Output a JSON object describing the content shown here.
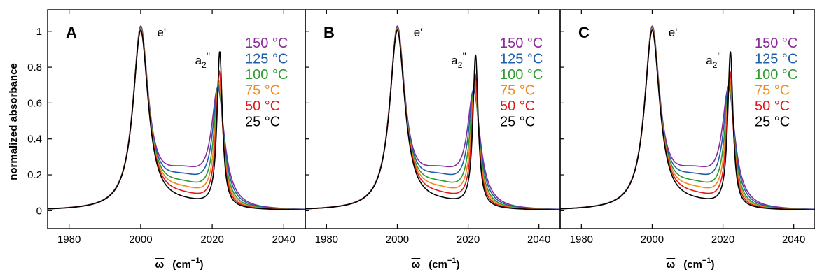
{
  "chart_data": {
    "type": "line",
    "ylabel": "normalized absorbance",
    "xlabel_symbol": "ω",
    "xlabel_unit": "(cm",
    "xlabel_exp": "−1",
    "xlabel_close": ")",
    "xlim": [
      1974,
      2046
    ],
    "ylim": [
      -0.1,
      1.12
    ],
    "x_ticks": [
      1980,
      2000,
      2020,
      2040
    ],
    "y_ticks": [
      0,
      0.2,
      0.4,
      0.6,
      0.8,
      1
    ],
    "y_tick_labels": [
      "0",
      "0.2",
      "0.4",
      "0.6",
      "0.8",
      "1"
    ],
    "annotations": {
      "e_prime": "e'",
      "a2_main": "a",
      "a2_sub": "2",
      "a2_sup": "''"
    },
    "series": [
      {
        "name": "150 °C",
        "color": "#8a2a9a",
        "peak1": {
          "x": 2000.0,
          "y": 1.0
        },
        "peak2": {
          "x": 2021.6,
          "y": 0.63
        },
        "min_between": {
          "x": 2012.0,
          "y": 0.25
        }
      },
      {
        "name": "125 °C",
        "color": "#1f5fa8",
        "peak1": {
          "x": 2000.0,
          "y": 1.0
        },
        "peak2": {
          "x": 2021.7,
          "y": 0.65
        },
        "min_between": {
          "x": 2012.0,
          "y": 0.21
        }
      },
      {
        "name": "100 °C",
        "color": "#2e9a2e",
        "peak1": {
          "x": 2000.0,
          "y": 1.0
        },
        "peak2": {
          "x": 2021.8,
          "y": 0.67
        },
        "min_between": {
          "x": 2012.0,
          "y": 0.17
        }
      },
      {
        "name": "75 °C",
        "color": "#f08a1c",
        "peak1": {
          "x": 2000.0,
          "y": 1.0
        },
        "peak2": {
          "x": 2021.9,
          "y": 0.7
        },
        "min_between": {
          "x": 2012.0,
          "y": 0.14
        }
      },
      {
        "name": "50 °C",
        "color": "#e01818",
        "peak1": {
          "x": 2000.0,
          "y": 1.0
        },
        "peak2": {
          "x": 2022.0,
          "y": 0.76
        },
        "min_between": {
          "x": 2012.0,
          "y": 0.11
        }
      },
      {
        "name": "25 °C",
        "color": "#000000",
        "peak1": {
          "x": 2000.0,
          "y": 1.0
        },
        "peak2": {
          "x": 2022.1,
          "y": 0.88
        },
        "min_between": {
          "x": 2012.0,
          "y": 0.08
        }
      }
    ],
    "panels": [
      {
        "letter": "A",
        "peak2_scale": 1.0
      },
      {
        "letter": "B",
        "peak2_scale": 0.98
      },
      {
        "letter": "C",
        "peak2_scale": 1.0
      }
    ]
  }
}
